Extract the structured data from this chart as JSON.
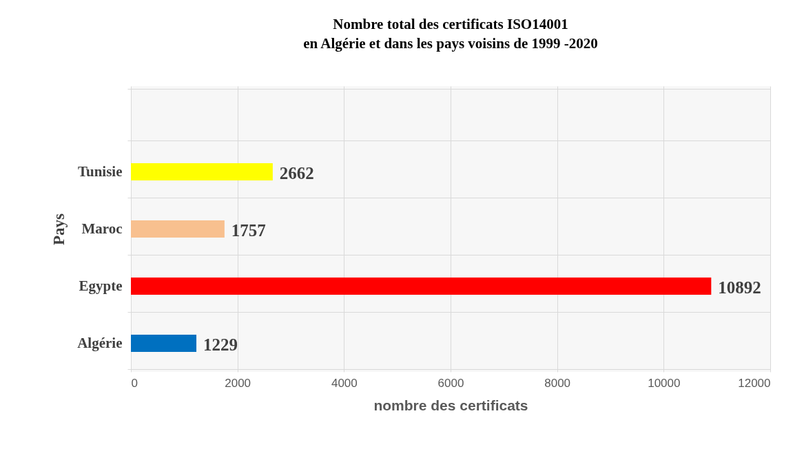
{
  "chart_data": {
    "type": "bar",
    "orientation": "horizontal",
    "title": "Nombre total  des certificats ISO14001\nen Algérie et dans les pays voisins de 1999 -2020",
    "xlabel": "nombre des certificats",
    "ylabel": "Pays",
    "categories": [
      null,
      "Tunisie",
      "Maroc",
      "Egypte",
      "Algérie"
    ],
    "values": [
      null,
      2662,
      1757,
      10892,
      1229
    ],
    "colors": [
      "#ffffff",
      "#ffff00",
      "#f8c08f",
      "#ff0000",
      "#0070c0"
    ],
    "xlim": [
      0,
      12000
    ],
    "xticks": [
      0,
      2000,
      4000,
      6000,
      8000,
      10000,
      12000
    ],
    "grid": true,
    "data_labels": true
  }
}
